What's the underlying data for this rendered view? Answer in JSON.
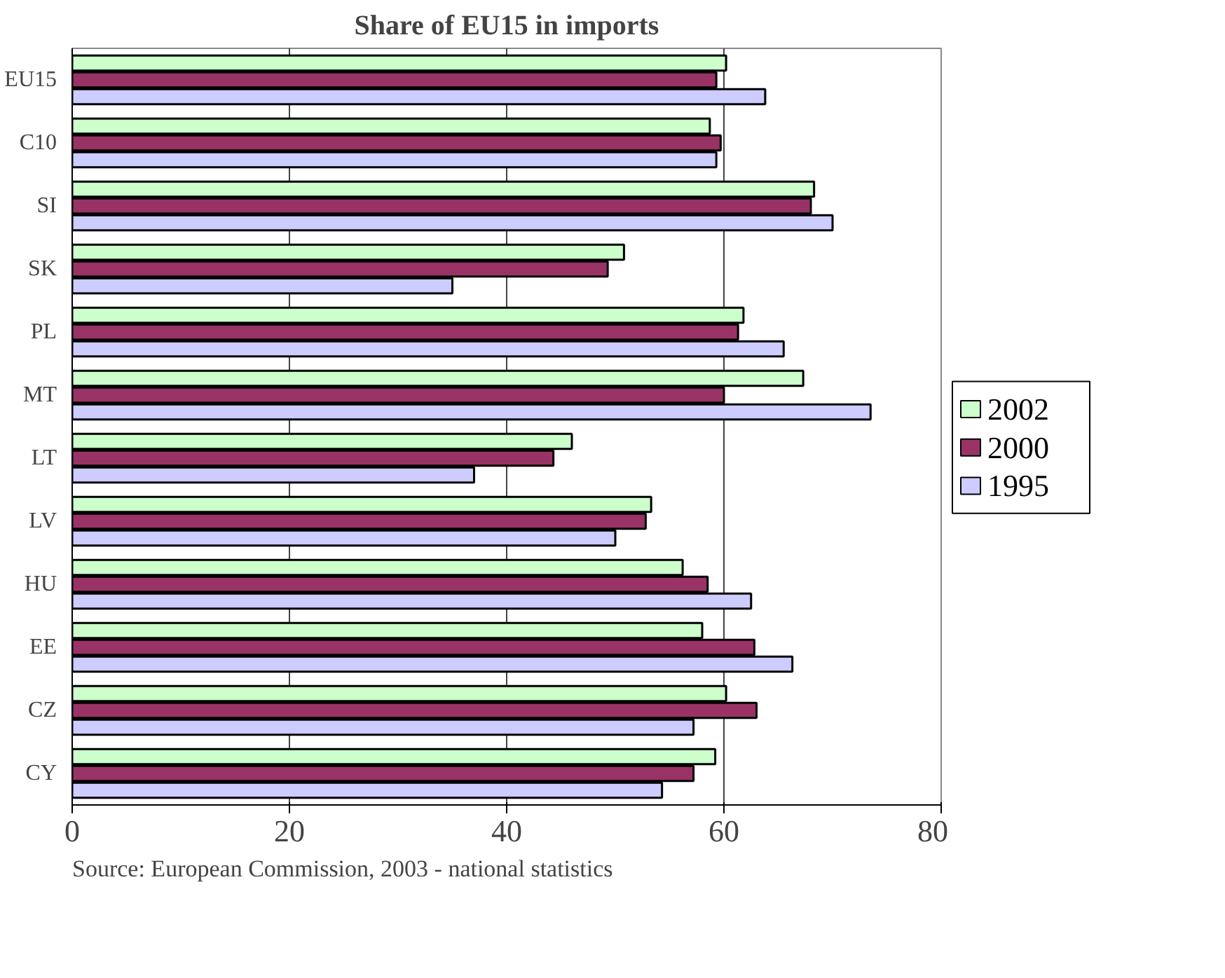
{
  "chart_data": {
    "type": "bar",
    "orientation": "horizontal",
    "title": "Share of EU15 in imports",
    "categories": [
      "EU15",
      "C10",
      "SI",
      "SK",
      "PL",
      "MT",
      "LT",
      "LV",
      "HU",
      "EE",
      "CZ",
      "CY"
    ],
    "series": [
      {
        "name": "2002",
        "color": "#ccffcc",
        "values": [
          60.2,
          58.7,
          68.3,
          50.8,
          61.8,
          67.3,
          46.0,
          53.3,
          56.2,
          58.0,
          60.2,
          59.2
        ]
      },
      {
        "name": "2000",
        "color": "#993366",
        "values": [
          59.3,
          59.7,
          68.0,
          49.3,
          61.3,
          60.0,
          44.3,
          52.8,
          58.5,
          62.8,
          63.0,
          57.2
        ]
      },
      {
        "name": "1995",
        "color": "#ccccff",
        "values": [
          63.8,
          59.3,
          70.0,
          35.0,
          65.5,
          73.5,
          37.0,
          50.0,
          62.5,
          66.3,
          57.2,
          54.3
        ]
      }
    ],
    "xlim": [
      0,
      80
    ],
    "xticks": [
      0,
      20,
      40,
      60,
      80
    ],
    "grid": "x",
    "legend": "right",
    "annotations": [
      "Source: European Commission, 2003 - national statistics"
    ]
  }
}
